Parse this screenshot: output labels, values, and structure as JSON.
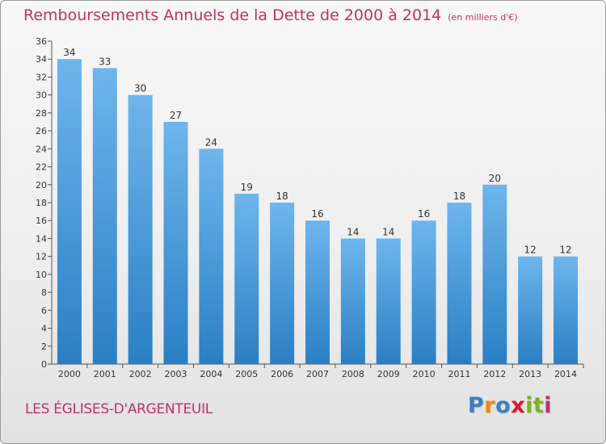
{
  "header": {
    "title": "Remboursements Annuels de la Dette de 2000 à 2014",
    "subtitle": "(en milliers d'€)"
  },
  "footer": {
    "commune": "LES ÉGLISES-D'ARGENTEUIL",
    "logo": "Proxiti",
    "logo_colors": [
      "#3a7fc4",
      "#f08a00",
      "#3a7fc4",
      "#e0162b",
      "#7bb51f",
      "#7bb51f",
      "#c0306b"
    ]
  },
  "colors": {
    "title": "#c0306b",
    "bar_top": "#6eb6ec",
    "bar_bottom": "#2a7fc4",
    "axis": "#555555"
  },
  "chart_data": {
    "type": "bar",
    "title": "Remboursements Annuels de la Dette de 2000 à 2014",
    "xlabel": "",
    "ylabel": "",
    "categories": [
      "2000",
      "2001",
      "2002",
      "2003",
      "2004",
      "2005",
      "2006",
      "2007",
      "2008",
      "2009",
      "2010",
      "2011",
      "2012",
      "2013",
      "2014"
    ],
    "values": [
      34,
      33,
      30,
      27,
      24,
      19,
      18,
      16,
      14,
      14,
      16,
      18,
      20,
      12,
      12
    ],
    "ylim": [
      0,
      36
    ],
    "yticks": [
      0,
      2,
      4,
      6,
      8,
      10,
      12,
      14,
      16,
      18,
      20,
      22,
      24,
      26,
      28,
      30,
      32,
      34,
      36
    ],
    "grid": false,
    "data_labels": true
  }
}
